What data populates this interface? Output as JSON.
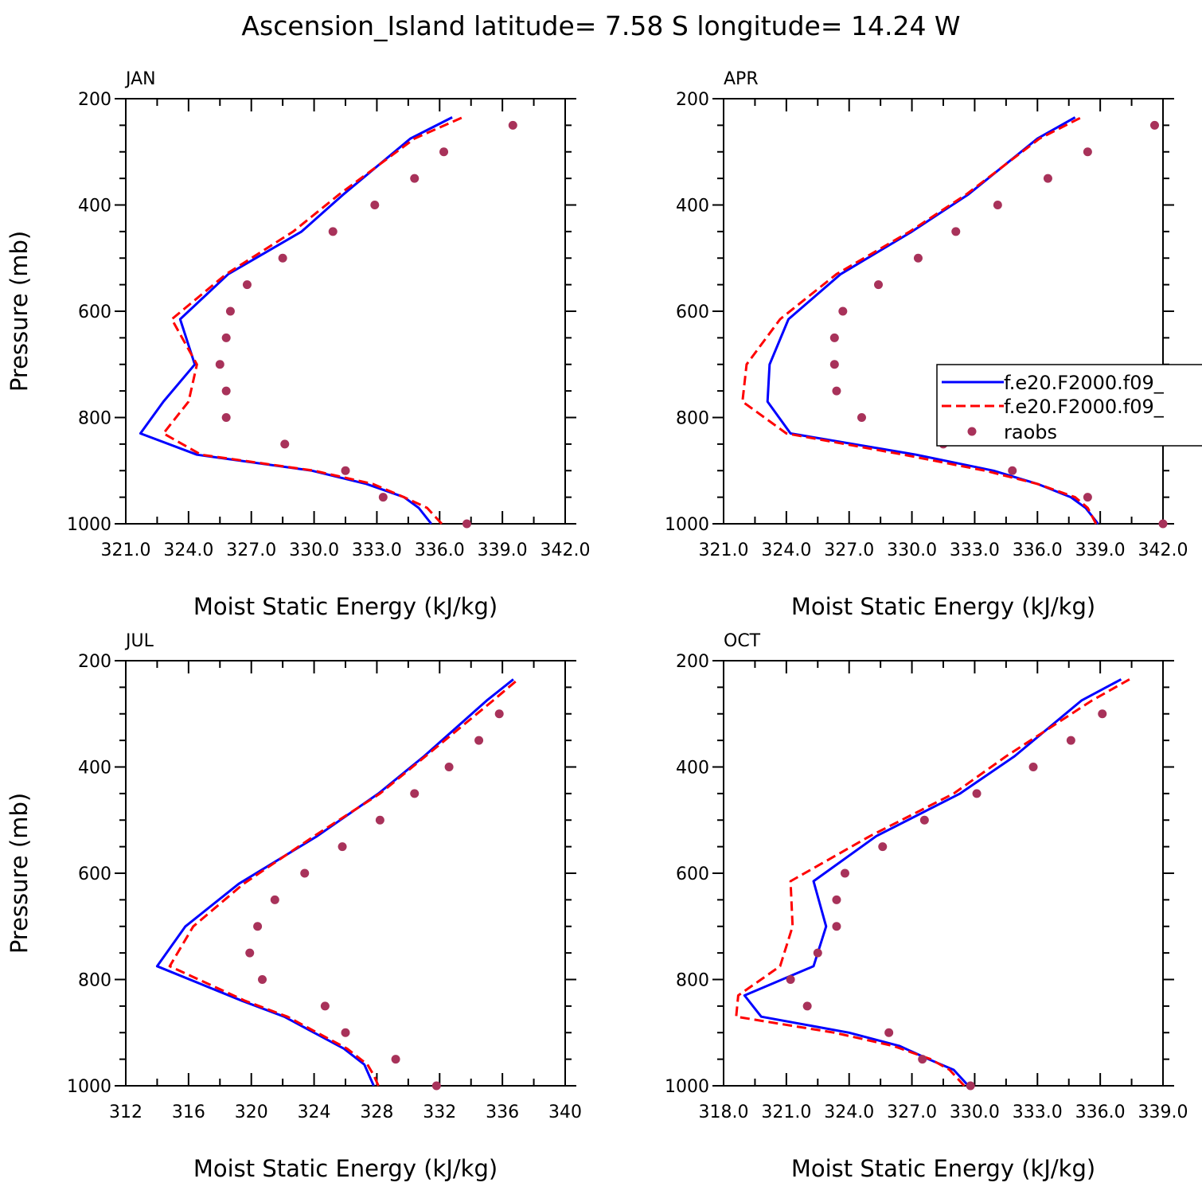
{
  "title": "Ascension_Island  latitude= 7.58 S longitude= 14.24 W",
  "legend": {
    "placement": "right-middle of APR panel",
    "entries": [
      "f.e20.F2000.f09_",
      "f.e20.F2000.f09_",
      "raobs"
    ]
  },
  "colors": {
    "model_a": "#0000ff",
    "model_b": "#ff0000",
    "raobs": "#a8325a"
  },
  "chart_data": [
    {
      "type": "line",
      "label": "JAN",
      "xlabel": "Moist Static Energy (kJ/kg)",
      "ylabel": "Pressure (mb)",
      "xlim": [
        321.0,
        342.0
      ],
      "ylim": [
        1000,
        200
      ],
      "xticks": [
        321.0,
        324.0,
        327.0,
        330.0,
        333.0,
        336.0,
        339.0,
        342.0
      ],
      "xtick_labels": [
        "321.0",
        "324.0",
        "327.0",
        "330.0",
        "333.0",
        "336.0",
        "339.0",
        "342.0"
      ],
      "yticks": [
        200,
        400,
        600,
        800,
        1000
      ],
      "ytick_labels": [
        "200",
        "400",
        "600",
        "800",
        "1000"
      ],
      "series": [
        {
          "name": "f.e20.F2000.f09_",
          "style": "solid",
          "p": [
            1000,
            970,
            950,
            925,
            900,
            870,
            830,
            770,
            700,
            615,
            530,
            450,
            380,
            275,
            235
          ],
          "x": [
            335.6,
            335.0,
            334.3,
            332.5,
            329.9,
            324.4,
            321.7,
            322.8,
            324.3,
            323.6,
            325.9,
            329.4,
            331.4,
            334.6,
            336.6
          ]
        },
        {
          "name": "f.e20.F2000.f09_",
          "style": "dashed",
          "p": [
            1000,
            970,
            950,
            925,
            900,
            870,
            830,
            770,
            700,
            615,
            530,
            450,
            380,
            275,
            235
          ],
          "x": [
            336.1,
            335.4,
            334.3,
            332.8,
            330.0,
            324.6,
            322.8,
            324.0,
            324.4,
            323.2,
            325.8,
            329.0,
            331.2,
            334.8,
            337.1
          ]
        },
        {
          "name": "raobs",
          "style": "markers",
          "p": [
            1000,
            950,
            900,
            850,
            800,
            750,
            700,
            650,
            600,
            550,
            500,
            450,
            400,
            350,
            300,
            250
          ],
          "x": [
            337.3,
            333.3,
            331.5,
            328.6,
            325.8,
            325.8,
            325.5,
            325.8,
            326.0,
            326.8,
            328.5,
            330.9,
            332.9,
            334.8,
            336.2,
            339.5
          ]
        }
      ]
    },
    {
      "type": "line",
      "label": "APR",
      "xlabel": "Moist Static Energy (kJ/kg)",
      "ylabel": "",
      "xlim": [
        321.0,
        342.0
      ],
      "ylim": [
        1000,
        200
      ],
      "xticks": [
        321.0,
        324.0,
        327.0,
        330.0,
        333.0,
        336.0,
        339.0,
        342.0
      ],
      "xtick_labels": [
        "321.0",
        "324.0",
        "327.0",
        "330.0",
        "333.0",
        "336.0",
        "339.0",
        "342.0"
      ],
      "yticks": [
        200,
        400,
        600,
        800,
        1000
      ],
      "ytick_labels": [
        "200",
        "400",
        "600",
        "800",
        "1000"
      ],
      "series": [
        {
          "name": "f.e20.F2000.f09_",
          "style": "solid",
          "p": [
            1000,
            970,
            950,
            925,
            900,
            870,
            830,
            770,
            700,
            615,
            530,
            450,
            380,
            275,
            235
          ],
          "x": [
            338.9,
            338.3,
            337.6,
            336.0,
            333.9,
            330.2,
            324.2,
            323.1,
            323.2,
            324.1,
            326.6,
            330.0,
            332.7,
            336.0,
            337.8
          ]
        },
        {
          "name": "f.e20.F2000.f09_",
          "style": "dashed",
          "p": [
            1000,
            970,
            950,
            925,
            900,
            870,
            830,
            770,
            700,
            615,
            530,
            450,
            380,
            275,
            235
          ],
          "x": [
            338.8,
            338.4,
            337.8,
            336.0,
            333.5,
            329.6,
            324.0,
            321.9,
            322.1,
            323.7,
            326.4,
            329.9,
            332.6,
            336.1,
            338.1
          ]
        },
        {
          "name": "raobs",
          "style": "markers",
          "p": [
            1000,
            950,
            900,
            850,
            800,
            750,
            700,
            650,
            600,
            550,
            500,
            450,
            400,
            350,
            300,
            250
          ],
          "x": [
            342.0,
            338.4,
            334.8,
            331.5,
            327.6,
            326.4,
            326.3,
            326.3,
            326.7,
            328.4,
            330.3,
            332.1,
            334.1,
            336.5,
            338.4,
            341.6
          ]
        }
      ]
    },
    {
      "type": "line",
      "label": "JUL",
      "xlabel": "Moist Static Energy (kJ/kg)",
      "ylabel": "Pressure (mb)",
      "xlim": [
        312,
        340
      ],
      "ylim": [
        1000,
        200
      ],
      "xticks": [
        312,
        316,
        320,
        324,
        328,
        332,
        336,
        340
      ],
      "xtick_labels": [
        "312",
        "316",
        "320",
        "324",
        "328",
        "332",
        "336",
        "340"
      ],
      "yticks": [
        200,
        400,
        600,
        800,
        1000
      ],
      "ytick_labels": [
        "200",
        "400",
        "600",
        "800",
        "1000"
      ],
      "series": [
        {
          "name": "f.e20.F2000.f09_",
          "style": "solid",
          "p": [
            1000,
            980,
            960,
            930,
            900,
            870,
            840,
            775,
            700,
            620,
            530,
            450,
            380,
            275,
            235
          ],
          "x": [
            327.8,
            327.5,
            327.2,
            325.9,
            324.0,
            322.1,
            319.4,
            314.0,
            315.8,
            319.2,
            324.2,
            328.1,
            331.0,
            335.0,
            336.7
          ]
        },
        {
          "name": "f.e20.F2000.f09_",
          "style": "dashed",
          "p": [
            1000,
            980,
            960,
            930,
            900,
            870,
            840,
            775,
            700,
            620,
            530,
            450,
            380,
            275,
            235
          ],
          "x": [
            328.1,
            327.8,
            327.4,
            326.1,
            324.2,
            322.3,
            319.6,
            314.8,
            316.3,
            319.5,
            324.0,
            328.2,
            331.1,
            335.4,
            337.0
          ]
        },
        {
          "name": "raobs",
          "style": "markers",
          "p": [
            1000,
            950,
            900,
            850,
            800,
            750,
            700,
            650,
            600,
            550,
            500,
            450,
            400,
            350,
            300
          ],
          "x": [
            331.8,
            329.2,
            326.0,
            324.7,
            320.7,
            319.9,
            320.4,
            321.5,
            323.4,
            325.8,
            328.2,
            330.4,
            332.6,
            334.5,
            335.8
          ]
        }
      ]
    },
    {
      "type": "line",
      "label": "OCT",
      "xlabel": "Moist Static Energy (kJ/kg)",
      "ylabel": "",
      "xlim": [
        318.0,
        339.0
      ],
      "ylim": [
        1000,
        200
      ],
      "xticks": [
        318.0,
        321.0,
        324.0,
        327.0,
        330.0,
        333.0,
        336.0,
        339.0
      ],
      "xtick_labels": [
        "318.0",
        "321.0",
        "324.0",
        "327.0",
        "330.0",
        "333.0",
        "336.0",
        "339.0"
      ],
      "yticks": [
        200,
        400,
        600,
        800,
        1000
      ],
      "ytick_labels": [
        "200",
        "400",
        "600",
        "800",
        "1000"
      ],
      "series": [
        {
          "name": "f.e20.F2000.f09_",
          "style": "solid",
          "p": [
            1000,
            970,
            950,
            925,
            900,
            870,
            830,
            775,
            700,
            615,
            530,
            450,
            380,
            275,
            235
          ],
          "x": [
            329.7,
            329.0,
            327.8,
            326.4,
            324.0,
            319.8,
            319.0,
            322.3,
            322.9,
            322.3,
            325.3,
            329.3,
            331.9,
            335.1,
            337.0
          ]
        },
        {
          "name": "f.e20.F2000.f09_",
          "style": "dashed",
          "p": [
            1000,
            970,
            950,
            925,
            900,
            870,
            830,
            775,
            700,
            615,
            530,
            450,
            380,
            275,
            235
          ],
          "x": [
            329.5,
            328.8,
            327.9,
            326.1,
            323.3,
            318.6,
            318.7,
            320.7,
            321.3,
            321.2,
            325.0,
            329.0,
            331.5,
            335.6,
            337.4
          ]
        },
        {
          "name": "raobs",
          "style": "markers",
          "p": [
            1000,
            950,
            900,
            850,
            800,
            750,
            700,
            650,
            600,
            550,
            500,
            450,
            400,
            350,
            300
          ],
          "x": [
            329.8,
            327.5,
            325.9,
            322.0,
            321.2,
            322.5,
            323.4,
            323.4,
            323.8,
            325.6,
            327.6,
            330.1,
            332.8,
            334.6,
            336.1
          ]
        }
      ]
    }
  ]
}
